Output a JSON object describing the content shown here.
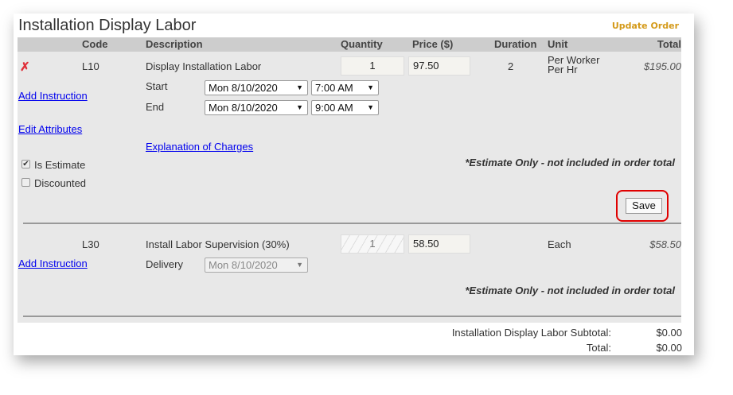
{
  "section_title": "Installation Display Labor",
  "update_order_label": "Update Order",
  "colors": {
    "accent": "#d49a1a",
    "link": "#0000ee",
    "highlight": "#e00000"
  },
  "columns": [
    "Code",
    "Description",
    "Quantity",
    "Price ($)",
    "Duration",
    "Unit",
    "Total"
  ],
  "items": [
    {
      "code": "L10",
      "description": "Display Installation Labor",
      "quantity": "1",
      "price": "97.50",
      "duration": "2",
      "unit_line1": "Per Worker",
      "unit_line2": "Per Hr",
      "total": "$195.00",
      "start_label": "Start",
      "start_date": "Mon 8/10/2020",
      "start_time": "7:00 AM",
      "end_label": "End",
      "end_date": "Mon 8/10/2020",
      "end_time": "9:00 AM",
      "add_instruction": "Add Instruction",
      "edit_attributes": "Edit Attributes",
      "explanation": "Explanation of Charges",
      "is_estimate_label": "Is Estimate",
      "is_estimate": true,
      "discounted_label": "Discounted",
      "discounted": false,
      "note": "*Estimate Only - not included in order total",
      "save_label": "Save"
    },
    {
      "code": "L30",
      "description": "Install Labor Supervision (30%)",
      "quantity": "1",
      "price": "58.50",
      "unit": "Each",
      "total": "$58.50",
      "add_instruction": "Add Instruction",
      "delivery_label": "Delivery",
      "delivery_date": "Mon 8/10/2020",
      "note": "*Estimate Only - not included in order total"
    }
  ],
  "summary": {
    "subtotal_label": "Installation Display Labor Subtotal:",
    "subtotal_value": "$0.00",
    "total_label": "Total:",
    "total_value": "$0.00"
  }
}
